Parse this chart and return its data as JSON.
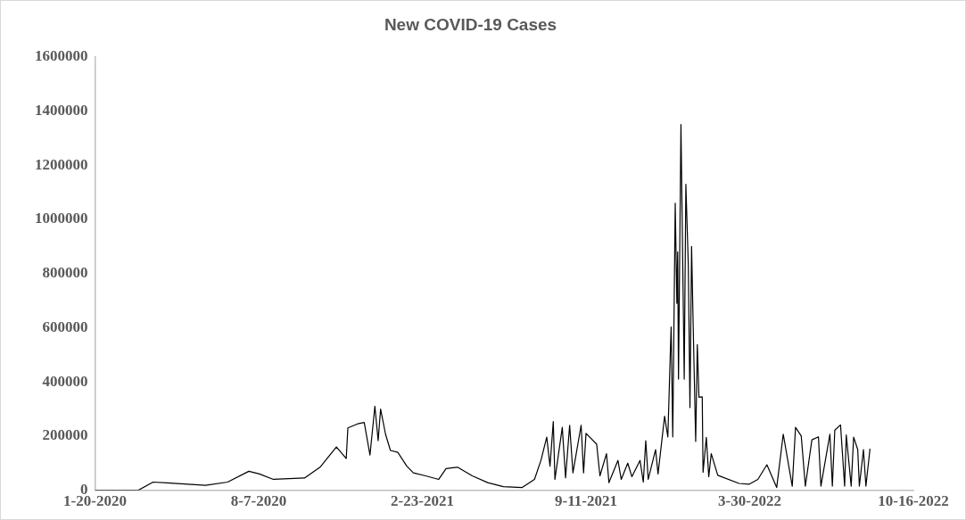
{
  "chart_data": {
    "type": "line",
    "title": "New COVID-19 Cases",
    "color": "#000000",
    "grid": false,
    "legend": false,
    "marker": "none",
    "x": [
      "2020-01-20",
      "2020-03-13",
      "2020-03-31",
      "2020-04-17",
      "2020-05-04",
      "2020-06-03",
      "2020-06-30",
      "2020-07-26",
      "2020-08-08",
      "2020-08-25",
      "2020-10-02",
      "2020-10-21",
      "2020-11-10",
      "2020-11-22",
      "2020-11-24",
      "2020-12-06",
      "2020-12-14",
      "2020-12-21",
      "2020-12-27",
      "2020-12-31",
      "2021-01-03",
      "2021-01-09",
      "2021-01-15",
      "2021-01-24",
      "2021-02-04",
      "2021-02-12",
      "2021-02-27",
      "2021-03-15",
      "2021-03-24",
      "2021-04-07",
      "2021-04-25",
      "2021-05-14",
      "2021-06-02",
      "2021-06-25",
      "2021-07-10",
      "2021-07-18",
      "2021-07-25",
      "2021-07-29",
      "2021-08-02",
      "2021-08-04",
      "2021-08-13",
      "2021-08-17",
      "2021-08-22",
      "2021-08-26",
      "2021-09-05",
      "2021-09-08",
      "2021-09-11",
      "2021-09-24",
      "2021-09-28",
      "2021-10-06",
      "2021-10-09",
      "2021-10-20",
      "2021-10-24",
      "2021-11-01",
      "2021-11-06",
      "2021-11-16",
      "2021-11-20",
      "2021-11-23",
      "2021-11-26",
      "2021-12-05",
      "2021-12-08",
      "2021-12-16",
      "2021-12-20",
      "2021-12-23",
      "2021-12-24",
      "2021-12-26",
      "2021-12-29",
      "2021-12-31",
      "2022-01-01",
      "2022-01-02",
      "2022-01-05",
      "2022-01-07",
      "2022-01-09",
      "2022-01-11",
      "2022-01-14",
      "2022-01-16",
      "2022-01-18",
      "2022-01-20",
      "2022-01-23",
      "2022-01-25",
      "2022-01-27",
      "2022-01-31",
      "2022-02-01",
      "2022-02-05",
      "2022-02-08",
      "2022-02-11",
      "2022-02-19",
      "2022-03-17",
      "2022-03-29",
      "2022-04-09",
      "2022-04-20",
      "2022-05-02",
      "2022-05-10",
      "2022-05-21",
      "2022-05-25",
      "2022-06-01",
      "2022-06-06",
      "2022-06-14",
      "2022-06-22",
      "2022-06-25",
      "2022-07-06",
      "2022-07-09",
      "2022-07-12",
      "2022-07-19",
      "2022-07-24",
      "2022-07-26",
      "2022-08-01",
      "2022-08-04",
      "2022-08-09",
      "2022-08-11",
      "2022-08-16",
      "2022-08-19",
      "2022-08-24"
    ],
    "values": [
      0,
      0,
      30000,
      27000,
      24000,
      18000,
      30000,
      70000,
      60000,
      40000,
      45000,
      85000,
      160000,
      117000,
      230000,
      245000,
      250000,
      130000,
      310000,
      183000,
      300000,
      207000,
      147000,
      140000,
      89000,
      64000,
      53000,
      40000,
      80000,
      85000,
      53000,
      28000,
      13000,
      10000,
      40000,
      111000,
      196000,
      89000,
      254000,
      40000,
      232000,
      46000,
      240000,
      64000,
      240000,
      64000,
      210000,
      170000,
      53000,
      135000,
      28000,
      110000,
      40000,
      100000,
      50000,
      110000,
      30000,
      183000,
      40000,
      150000,
      60000,
      273000,
      197000,
      507000,
      603000,
      197000,
      1060000,
      690000,
      880000,
      410000,
      1350000,
      880000,
      410000,
      1130000,
      830000,
      305000,
      900000,
      600000,
      180000,
      538000,
      343000,
      345000,
      66000,
      195000,
      50000,
      135000,
      55000,
      25000,
      22000,
      40000,
      94000,
      10000,
      207000,
      15000,
      232000,
      200000,
      15000,
      186000,
      197000,
      15000,
      207000,
      15000,
      222000,
      241000,
      15000,
      204000,
      15000,
      196000,
      150000,
      15000,
      150000,
      15000,
      153000
    ],
    "xlim": [
      "2020-01-20",
      "2022-10-16"
    ],
    "xticks": [
      {
        "value": "2020-01-20",
        "label": "1-20-2020"
      },
      {
        "value": "2020-08-07",
        "label": "8-7-2020"
      },
      {
        "value": "2021-02-23",
        "label": "2-23-2021"
      },
      {
        "value": "2021-09-11",
        "label": "9-11-2021"
      },
      {
        "value": "2022-03-30",
        "label": "3-30-2022"
      },
      {
        "value": "2022-10-16",
        "label": "10-16-2022"
      }
    ],
    "ylim": [
      0,
      1600000
    ],
    "yticks": [
      0,
      200000,
      400000,
      600000,
      800000,
      1000000,
      1200000,
      1400000,
      1600000
    ]
  }
}
